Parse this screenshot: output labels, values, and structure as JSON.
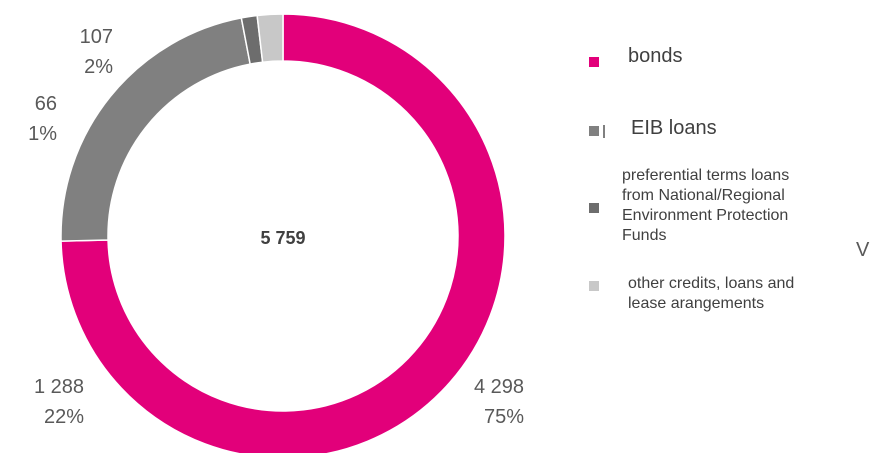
{
  "chart_data": {
    "type": "pie",
    "variant": "donut",
    "total_label": "5 759",
    "slices": [
      {
        "name": "bonds",
        "value": 4298,
        "percent_label": "75%",
        "value_label": "4 298",
        "color": "#e2007a"
      },
      {
        "name": "EIB loans",
        "value": 1288,
        "percent_label": "22%",
        "value_label": "1 288",
        "color": "#808080"
      },
      {
        "name": "preferential terms loans from National/Regional Environment Protection Funds",
        "value": 66,
        "percent_label": "1%",
        "value_label": "66",
        "color": "#6d6d6d"
      },
      {
        "name": "other credits, loans and lease arangements",
        "value": 107,
        "percent_label": "2%",
        "value_label": "107",
        "color": "#c8c8c8"
      }
    ],
    "legend": {
      "placement": "right",
      "items": [
        {
          "lines": [
            "bonds"
          ],
          "color": "#e2007a"
        },
        {
          "lines": [
            "EIB loans"
          ],
          "color": "#808080"
        },
        {
          "lines": [
            "preferential terms loans",
            "from National/Regional",
            "Environment Protection",
            "Funds"
          ],
          "color": "#6d6d6d"
        },
        {
          "lines": [
            "other credits, loans and",
            "lease arangements"
          ],
          "color": "#c8c8c8"
        }
      ]
    },
    "stray_text": "V"
  }
}
